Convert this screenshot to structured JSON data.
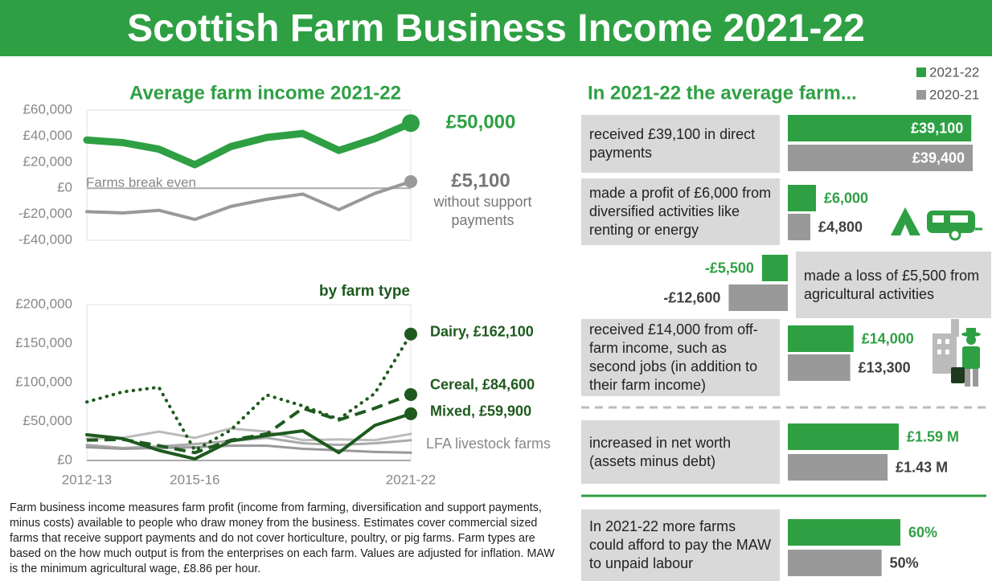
{
  "title": "Scottish Farm Business Income 2021-22",
  "chart_data": [
    {
      "type": "line",
      "title": "Average farm income 2021-22",
      "categories": [
        null,
        null,
        null,
        null,
        null,
        null,
        null,
        null,
        null,
        null
      ],
      "series": [
        {
          "color": "#2ea043",
          "values": [
            37000,
            35000,
            30000,
            18000,
            32000,
            39000,
            42000,
            29000,
            38000,
            50000
          ],
          "value_labels": [
            null,
            null,
            null,
            null,
            null,
            null,
            null,
            null,
            null,
            "£50,000"
          ]
        },
        {
          "color": "#999999",
          "values": [
            -18000,
            -19000,
            -17000,
            -24000,
            -14000,
            -8500,
            -4500,
            -16500,
            -4000,
            5100
          ],
          "value_labels": [
            null,
            null,
            null,
            null,
            null,
            null,
            null,
            null,
            null,
            "£5,100"
          ]
        }
      ],
      "annotations": [
        "Farms break even",
        "without support payments"
      ],
      "ylim": [
        -40000,
        60000
      ],
      "yticks": [
        {
          "value": 60000,
          "label": "£60,000"
        },
        {
          "value": 40000,
          "label": "£40,000"
        },
        {
          "value": 20000,
          "label": "£20,000"
        },
        {
          "value": 0,
          "label": "£0"
        },
        {
          "value": -20000,
          "label": "-£20,000"
        },
        {
          "value": -40000,
          "label": "-£40,000"
        }
      ]
    },
    {
      "type": "line",
      "title": "by farm type",
      "categories": [
        "2012-13",
        null,
        null,
        "2015-16",
        null,
        null,
        null,
        null,
        null,
        "2021-22"
      ],
      "series": [
        {
          "color": "#bbbbbb",
          "style": "solid",
          "values": [
            28000,
            29000,
            37000,
            29000,
            41000,
            37000,
            26000,
            27000,
            26000,
            34000
          ]
        },
        {
          "color": "#aaaaaa",
          "style": "solid",
          "values": [
            20000,
            16000,
            18000,
            21000,
            25000,
            29000,
            22000,
            20000,
            22000,
            26000
          ]
        },
        {
          "color": "#999999",
          "style": "solid",
          "values": [
            17000,
            15000,
            16000,
            17000,
            19000,
            19000,
            15000,
            13000,
            11000,
            10000
          ]
        },
        {
          "color": "#1e5a1e",
          "style": "dotted",
          "values": [
            75000,
            88000,
            94000,
            13000,
            39000,
            84000,
            70000,
            53000,
            86000,
            162100
          ],
          "value_labels": [
            null,
            null,
            null,
            null,
            null,
            null,
            null,
            null,
            null,
            "Dairy, £162,100"
          ]
        },
        {
          "color": "#1e5a1e",
          "style": "dashed",
          "values": [
            26000,
            27000,
            19000,
            10000,
            26000,
            34000,
            67000,
            52000,
            67000,
            84600
          ],
          "value_labels": [
            null,
            null,
            null,
            null,
            null,
            null,
            null,
            null,
            null,
            "Cereal, £84,600"
          ]
        },
        {
          "color": "#1e5a1e",
          "style": "solid",
          "values": [
            33000,
            28000,
            13000,
            2000,
            25000,
            32000,
            38000,
            10000,
            45000,
            59900
          ],
          "value_labels": [
            null,
            null,
            null,
            null,
            null,
            null,
            null,
            null,
            null,
            "Mixed, £59,900"
          ]
        }
      ],
      "annotations": [
        "LFA livestock farms"
      ],
      "ylim": [
        0,
        200000
      ],
      "yticks": [
        {
          "value": 200000,
          "label": "£200,000"
        },
        {
          "value": 150000,
          "label": "£150,000"
        },
        {
          "value": 100000,
          "label": "£100,000"
        },
        {
          "value": 50000,
          "label": "£50,000"
        },
        {
          "value": 0,
          "label": "£0"
        }
      ]
    },
    {
      "type": "bar",
      "orientation": "horizontal",
      "title": "In 2021-22 the average farm...",
      "categories": [
        "received £39,100 in direct payments",
        "made a profit of £6,000 from diversified activities like renting or energy",
        "made a loss of £5,500 from agricultural activities",
        "received £14,000 from off-farm income, such as second jobs (in addition to their farm income)",
        "increased in net worth (assets minus debt)",
        "In 2021-22 more farms could afford to pay the MAW to unpaid labour"
      ],
      "series": [
        {
          "name": "2021-22",
          "color": "#2ea043",
          "values": [
            39100,
            6000,
            -5500,
            14000,
            1590000,
            60
          ],
          "value_labels": [
            "£39,100",
            "£6,000",
            "-£5,500",
            "£14,000",
            "£1.59 M",
            "60%"
          ]
        },
        {
          "name": "2020-21",
          "color": "#999999",
          "values": [
            39400,
            4800,
            -12600,
            13300,
            1430000,
            50
          ],
          "value_labels": [
            "£39,400",
            "£4,800",
            "-£12,600",
            "£13,300",
            "£1.43 M",
            "50%"
          ]
        }
      ]
    }
  ],
  "note": "Farm business income measures farm profit (income from farming, diversification and support payments, minus costs) available to people who draw money from the business. Estimates cover commercial sized farms that receive support payments and do not cover horticulture, poultry, or pig farms. Farm types are based on the how much output is from the enterprises on each farm. Values are adjusted for inflation. MAW is the minimum agricultural wage, £8.86 per hour."
}
